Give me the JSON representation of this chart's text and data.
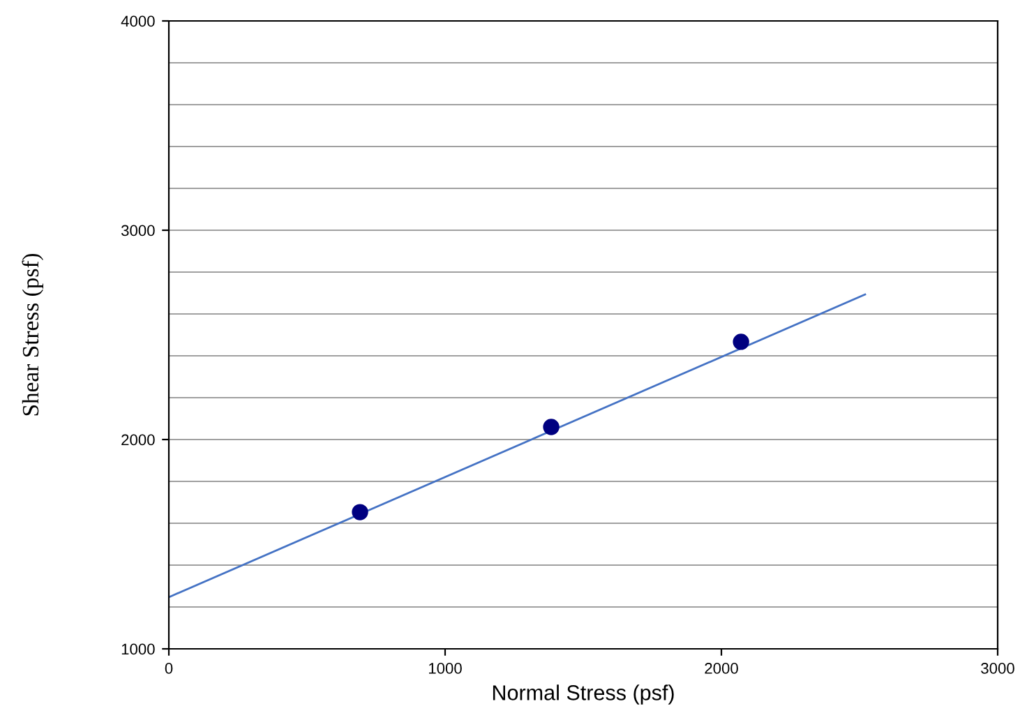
{
  "chart_data": {
    "type": "scatter",
    "xlabel": "Normal Stress (psf)",
    "ylabel": "Shear Stress (psf)",
    "series": [
      {
        "color": "#000080",
        "x": [
          692,
          1384,
          2071
        ],
        "values": [
          1653,
          2060,
          2467
        ],
        "marker": "circle"
      },
      {
        "type": "line",
        "color": "#4472c4",
        "x": [
          0,
          2520
        ],
        "values": [
          1247,
          2693
        ],
        "marker": "none"
      }
    ],
    "xlim": [
      0,
      3000
    ],
    "xticks": [
      0,
      1000,
      2000,
      3000
    ],
    "ylim": [
      1000,
      4000
    ],
    "yticks": [
      1000,
      {
        "value": 1200,
        "label": null
      },
      {
        "value": 1400,
        "label": null
      },
      {
        "value": 1600,
        "label": null
      },
      {
        "value": 1800,
        "label": null
      },
      2000,
      {
        "value": 2200,
        "label": null
      },
      {
        "value": 2400,
        "label": null
      },
      {
        "value": 2600,
        "label": null
      },
      {
        "value": 2800,
        "label": null
      },
      3000,
      {
        "value": 3200,
        "label": null
      },
      {
        "value": 3400,
        "label": null
      },
      {
        "value": 3600,
        "label": null
      },
      {
        "value": 3800,
        "label": null
      },
      4000
    ],
    "grid": "y"
  }
}
